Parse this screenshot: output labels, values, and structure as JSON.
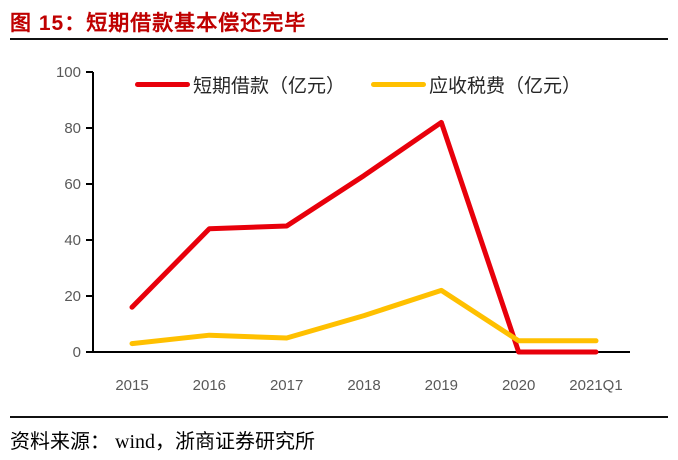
{
  "figure_title": "图 15：短期借款基本偿还完毕",
  "source": "资料来源： wind，浙商证券研究所",
  "colors": {
    "title": "#BF0000",
    "axis_line": "#000000",
    "axis_text": "#595959",
    "red_series": "#E8000B",
    "gold_series": "#FFC000"
  },
  "chart_data": {
    "type": "line",
    "title": "图 15：短期借款基本偿还完毕",
    "categories": [
      "2015",
      "2016",
      "2017",
      "2018",
      "2019",
      "2020",
      "2021Q1"
    ],
    "series": [
      {
        "name": "短期借款（亿元）",
        "color": "#E8000B",
        "values": [
          16,
          44,
          45,
          63,
          82,
          0,
          0
        ]
      },
      {
        "name": "应收税费（亿元）",
        "color": "#FFC000",
        "values": [
          3,
          6,
          5,
          13,
          22,
          4,
          4
        ]
      }
    ],
    "xlabel": "",
    "ylabel": "",
    "ylim": [
      0,
      100
    ],
    "yticks": [
      0,
      20,
      40,
      60,
      80,
      100
    ],
    "grid": false,
    "legend_position": "top"
  }
}
